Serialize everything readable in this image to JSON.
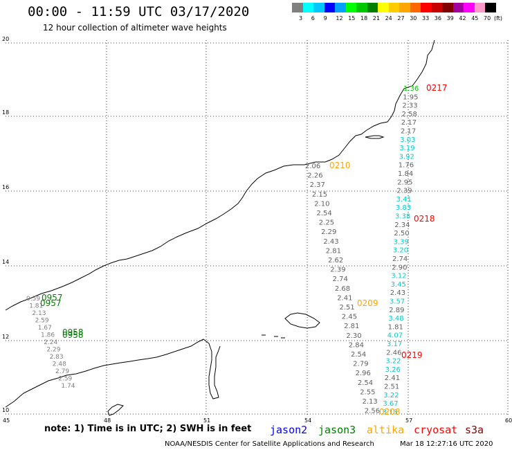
{
  "header": {
    "title": "00:00 - 11:59 UTC 03/17/2020",
    "subtitle": "12 hour collection of altimeter wave heights"
  },
  "colorbar": {
    "colors": [
      "#808080",
      "#00ffff",
      "#00c8ff",
      "#0000ff",
      "#00a0ff",
      "#00ff00",
      "#00c800",
      "#008000",
      "#ffff00",
      "#ffcc00",
      "#ffa500",
      "#ff6600",
      "#ff0000",
      "#c80000",
      "#800000",
      "#a000a0",
      "#ff00ff",
      "#ff99cc",
      "#000000"
    ],
    "labels": [
      "3",
      "6",
      "9",
      "12",
      "15",
      "18",
      "21",
      "24",
      "27",
      "30",
      "33",
      "36",
      "39",
      "42",
      "45",
      "70"
    ],
    "unit": "(ft)"
  },
  "axes": {
    "lat_labels": [
      "20",
      "18",
      "16",
      "14",
      "12",
      "10"
    ],
    "lon_labels": [
      "45",
      "48",
      "51",
      "54",
      "57",
      "60"
    ]
  },
  "footer": {
    "note": "note: 1) Time is in UTC; 2) SWH is in feet",
    "legend": [
      {
        "name": "jason2",
        "color": "#0000ff"
      },
      {
        "name": "jason3",
        "color": "#008000"
      },
      {
        "name": "altika",
        "color": "#ffa500"
      },
      {
        "name": "cryosat",
        "color": "#ff0000"
      },
      {
        "name": "s3a",
        "color": "#8b0000"
      }
    ],
    "credit": "NOAA/NESDIS Center for Satellite Applications and Research",
    "timestamp": "Mar 18 12:27:16 UTC 2020"
  },
  "tracks": {
    "right_track": [
      "1.36",
      "1.95",
      "2.33",
      "2.58",
      "2.17",
      "2.17",
      "3.03",
      "3.19",
      "3.92",
      "1.76",
      "1.84",
      "2.95",
      "2.39",
      "3.41",
      "3.83",
      "3.38",
      "2.34",
      "2.50",
      "3.39",
      "3.20",
      "2.74",
      "2.90",
      "3.12",
      "3.45",
      "2.43",
      "3.57",
      "2.89",
      "3.48",
      "1.81",
      "4.07",
      "3.17",
      "2.46",
      "3.22",
      "3.26",
      "2.41",
      "2.51",
      "3.22",
      "3.67",
      "3.13"
    ],
    "right_colors": [
      "#00c800",
      "g",
      "g",
      "g",
      "g",
      "g",
      "c",
      "c",
      "c",
      "g",
      "g",
      "g",
      "g",
      "c",
      "c",
      "c",
      "g",
      "g",
      "c",
      "c",
      "g",
      "g",
      "c",
      "c",
      "g",
      "c",
      "g",
      "c",
      "g",
      "c",
      "c",
      "g",
      "c",
      "c",
      "g",
      "g",
      "c",
      "c",
      "c"
    ],
    "middle_track": [
      "2.06",
      "2.26",
      "2.37",
      "2.15",
      "2.10",
      "2.54",
      "2.25",
      "2.29",
      "2.43",
      "2.81",
      "2.62",
      "2.39",
      "2.74",
      "2.68",
      "2.41",
      "2.51",
      "2.45",
      "2.81",
      "2.30",
      "2.84",
      "2.54",
      "2.79",
      "2.96",
      "2.54",
      "2.55",
      "2.13",
      "2.56"
    ],
    "left_track": [
      "0.59",
      "1.81",
      "2.13",
      "2.59",
      "1.67",
      "1.86",
      "2.24",
      "2.29",
      "2.83",
      "2.48",
      "2.79",
      "2.59",
      "1.74"
    ],
    "time_labels": [
      {
        "text": "0217",
        "color": "#ff0000"
      },
      {
        "text": "0210",
        "color": "#ffa500"
      },
      {
        "text": "0218",
        "color": "#ff0000"
      },
      {
        "text": "0209",
        "color": "#ffa500"
      },
      {
        "text": "0219",
        "color": "#ff0000"
      },
      {
        "text": "0208",
        "color": "#ffa500"
      },
      {
        "text": "0957",
        "color": "#008000"
      },
      {
        "text": "0957",
        "color": "#008000"
      },
      {
        "text": "0958",
        "color": "#008000"
      },
      {
        "text": "0958",
        "color": "#008000"
      }
    ]
  }
}
